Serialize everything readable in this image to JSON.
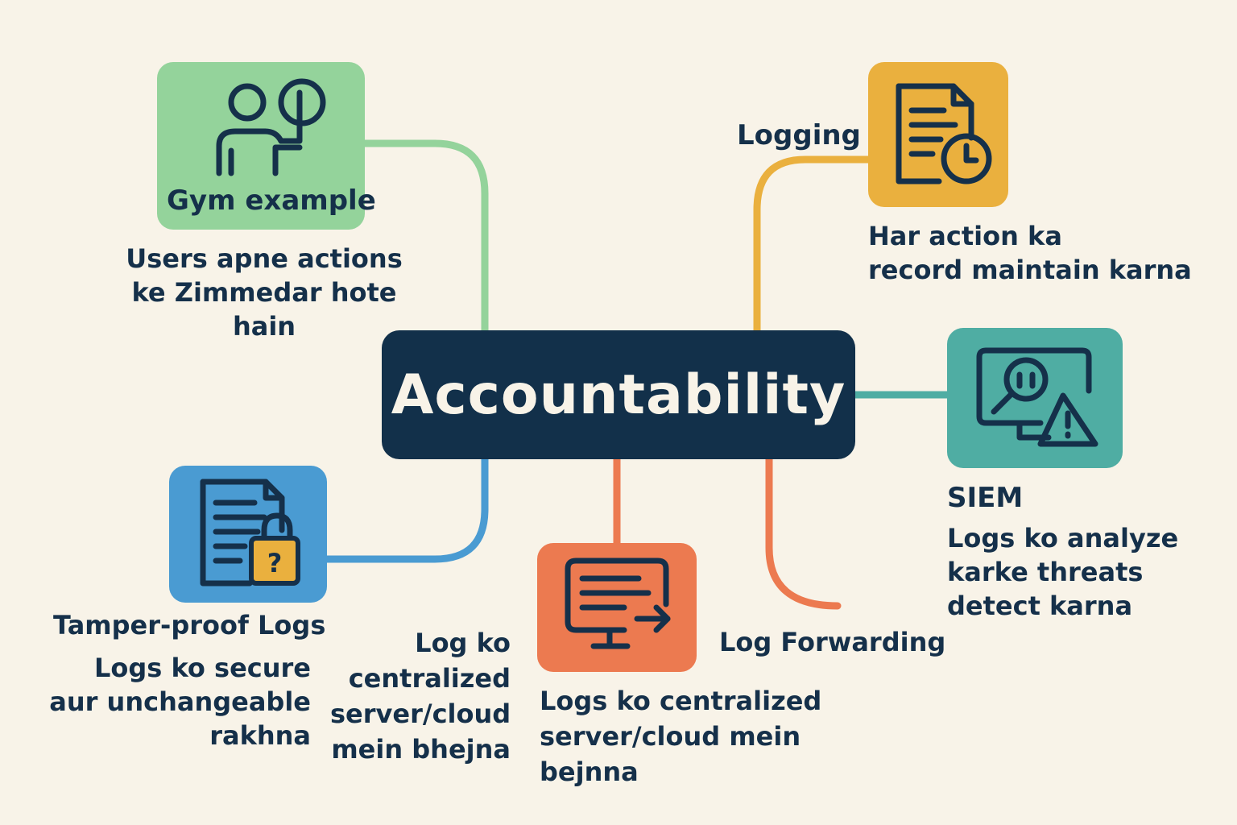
{
  "center": {
    "title": "Accountability"
  },
  "nodes": {
    "gym": {
      "label": "Gym example",
      "desc": "Users apne actions\nke Zimmedar hote hain",
      "icon": "person-raising-hand-icon",
      "color": "#94d39b"
    },
    "logging": {
      "label": "Logging",
      "desc": "Har action ka\nrecord maintain karna",
      "icon": "document-clock-icon",
      "color": "#eab03e"
    },
    "siem": {
      "label": "SIEM",
      "desc": "Logs ko analyze\nkarke threats\ndetect karna",
      "icon": "monitor-search-warning-icon",
      "color": "#4fada3"
    },
    "tamper": {
      "label": "Tamper-proof Logs",
      "desc": "Logs ko secure\naur unchangeable\nrakhna",
      "icon": "document-lock-icon",
      "color": "#4a9bd2"
    },
    "forwarding": {
      "label": "Log Forwarding",
      "desc": "Logs ko centralized\nserver/cloud mein bejnna",
      "side_note": "Log ko\ncentralized\nserver/cloud\nmein bhejna",
      "icon": "monitor-forward-arrow-icon",
      "color": "#ec7a50"
    }
  },
  "colors": {
    "background": "#f8f3e8",
    "center": "#12304a",
    "ink": "#15304a"
  }
}
